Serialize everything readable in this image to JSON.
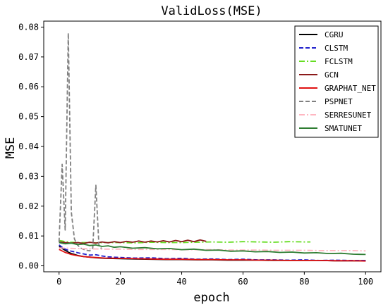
{
  "chart_data": {
    "type": "line",
    "title": "ValidLoss(MSE)",
    "xlabel": "epoch",
    "ylabel": "MSE",
    "xlim": [
      -5,
      105
    ],
    "ylim": [
      -0.002,
      0.082
    ],
    "xticks": [
      "0",
      "20",
      "40",
      "60",
      "80",
      "100"
    ],
    "yticks": [
      "0.00",
      "0.01",
      "0.02",
      "0.03",
      "0.04",
      "0.05",
      "0.06",
      "0.07",
      "0.08"
    ],
    "legend_position": "top-right",
    "grid": false,
    "series": [
      {
        "name": "CGRU",
        "color": "#000000",
        "dash": "solid",
        "points": [
          [
            0,
            0.0065
          ],
          [
            1,
            0.0058
          ],
          [
            2,
            0.0052
          ],
          [
            3,
            0.0046
          ],
          [
            4,
            0.0041
          ],
          [
            5,
            0.0038
          ],
          [
            6,
            0.0035
          ],
          [
            8,
            0.0031
          ],
          [
            10,
            0.0029
          ],
          [
            12,
            0.0027
          ],
          [
            15,
            0.0025
          ],
          [
            20,
            0.0024
          ],
          [
            25,
            0.0023
          ],
          [
            30,
            0.0022
          ],
          [
            35,
            0.0021
          ],
          [
            40,
            0.0021
          ],
          [
            45,
            0.002
          ],
          [
            50,
            0.002
          ],
          [
            55,
            0.0019
          ],
          [
            60,
            0.0019
          ],
          [
            65,
            0.0019
          ],
          [
            70,
            0.0018
          ],
          [
            75,
            0.0018
          ],
          [
            80,
            0.0018
          ],
          [
            85,
            0.0018
          ],
          [
            90,
            0.0017
          ],
          [
            95,
            0.0017
          ],
          [
            100,
            0.0017
          ]
        ]
      },
      {
        "name": "CLSTM",
        "color": "#1f1fcc",
        "dash": "dashed",
        "points": [
          [
            0,
            0.007
          ],
          [
            1,
            0.0062
          ],
          [
            2,
            0.0056
          ],
          [
            3,
            0.0052
          ],
          [
            4,
            0.0049
          ],
          [
            5,
            0.0047
          ],
          [
            6,
            0.0044
          ],
          [
            8,
            0.004
          ],
          [
            10,
            0.0036
          ],
          [
            12,
            0.0037
          ],
          [
            14,
            0.0033
          ],
          [
            16,
            0.003
          ],
          [
            20,
            0.0028
          ],
          [
            25,
            0.0026
          ],
          [
            30,
            0.0027
          ],
          [
            35,
            0.0024
          ],
          [
            40,
            0.0025
          ],
          [
            45,
            0.0022
          ],
          [
            50,
            0.0023
          ],
          [
            55,
            0.0021
          ],
          [
            60,
            0.0022
          ],
          [
            65,
            0.002
          ],
          [
            70,
            0.002
          ],
          [
            75,
            0.0019
          ],
          [
            80,
            0.002
          ],
          [
            85,
            0.0018
          ],
          [
            90,
            0.0019
          ],
          [
            95,
            0.0018
          ],
          [
            100,
            0.0018
          ]
        ]
      },
      {
        "name": "FCLSTM",
        "color": "#66dd22",
        "dash": "dashdot",
        "points": [
          [
            0,
            0.0085
          ],
          [
            1,
            0.0083
          ],
          [
            2,
            0.0081
          ],
          [
            3,
            0.008
          ],
          [
            4,
            0.0079
          ],
          [
            6,
            0.0078
          ],
          [
            8,
            0.0078
          ],
          [
            10,
            0.0078
          ],
          [
            12,
            0.0077
          ],
          [
            15,
            0.0078
          ],
          [
            20,
            0.0078
          ],
          [
            25,
            0.0077
          ],
          [
            30,
            0.0079
          ],
          [
            35,
            0.0078
          ],
          [
            40,
            0.0078
          ],
          [
            45,
            0.0079
          ],
          [
            50,
            0.008
          ],
          [
            55,
            0.0079
          ],
          [
            60,
            0.0081
          ],
          [
            65,
            0.008
          ],
          [
            70,
            0.0079
          ],
          [
            75,
            0.0081
          ],
          [
            80,
            0.008
          ],
          [
            82,
            0.008
          ]
        ]
      },
      {
        "name": "GCN",
        "color": "#8b1a1a",
        "dash": "solid",
        "points": [
          [
            0,
            0.008
          ],
          [
            2,
            0.0078
          ],
          [
            4,
            0.0076
          ],
          [
            6,
            0.0078
          ],
          [
            8,
            0.0075
          ],
          [
            10,
            0.0079
          ],
          [
            12,
            0.0076
          ],
          [
            14,
            0.008
          ],
          [
            16,
            0.0077
          ],
          [
            18,
            0.0081
          ],
          [
            20,
            0.0078
          ],
          [
            22,
            0.0082
          ],
          [
            24,
            0.0079
          ],
          [
            26,
            0.0083
          ],
          [
            28,
            0.0079
          ],
          [
            30,
            0.0083
          ],
          [
            32,
            0.008
          ],
          [
            34,
            0.0084
          ],
          [
            36,
            0.008
          ],
          [
            38,
            0.0085
          ],
          [
            40,
            0.0081
          ],
          [
            42,
            0.0086
          ],
          [
            44,
            0.0081
          ],
          [
            46,
            0.0087
          ],
          [
            48,
            0.0082
          ]
        ]
      },
      {
        "name": "GRAPHAT_NET",
        "color": "#e01010",
        "dash": "solid",
        "points": [
          [
            0,
            0.0055
          ],
          [
            2,
            0.0045
          ],
          [
            4,
            0.0038
          ],
          [
            6,
            0.0034
          ],
          [
            8,
            0.0031
          ],
          [
            10,
            0.0029
          ],
          [
            12,
            0.0028
          ],
          [
            15,
            0.0026
          ],
          [
            20,
            0.0025
          ],
          [
            25,
            0.0024
          ],
          [
            30,
            0.0023
          ],
          [
            35,
            0.0022
          ],
          [
            40,
            0.0022
          ],
          [
            45,
            0.0021
          ],
          [
            50,
            0.0021
          ],
          [
            55,
            0.002
          ],
          [
            60,
            0.002
          ],
          [
            65,
            0.0019
          ],
          [
            70,
            0.0019
          ],
          [
            75,
            0.0018
          ],
          [
            80,
            0.0018
          ],
          [
            85,
            0.0018
          ],
          [
            90,
            0.0017
          ],
          [
            95,
            0.0017
          ],
          [
            100,
            0.0016
          ]
        ]
      },
      {
        "name": "PSPNET",
        "color": "#808080",
        "dash": "dashed",
        "points": [
          [
            0,
            0.008
          ],
          [
            1,
            0.034
          ],
          [
            2,
            0.012
          ],
          [
            3,
            0.078
          ],
          [
            4,
            0.018
          ],
          [
            5,
            0.009
          ],
          [
            6,
            0.007
          ],
          [
            7,
            0.006
          ],
          [
            8,
            0.0055
          ],
          [
            9,
            0.0052
          ],
          [
            10,
            0.005
          ],
          [
            11,
            0.006
          ],
          [
            12,
            0.027
          ],
          [
            13,
            0.007
          ],
          [
            14,
            0.0055
          ]
        ]
      },
      {
        "name": "SERRESUNET",
        "color": "#ffb6c1",
        "dash": "dashdot",
        "points": [
          [
            0,
            0.006
          ],
          [
            5,
            0.0058
          ],
          [
            10,
            0.0057
          ],
          [
            15,
            0.0056
          ],
          [
            20,
            0.0056
          ],
          [
            25,
            0.0055
          ],
          [
            30,
            0.0055
          ],
          [
            35,
            0.0055
          ],
          [
            40,
            0.0054
          ],
          [
            45,
            0.0054
          ],
          [
            50,
            0.0054
          ],
          [
            55,
            0.0053
          ],
          [
            60,
            0.0053
          ],
          [
            65,
            0.0053
          ],
          [
            70,
            0.0052
          ],
          [
            75,
            0.0052
          ],
          [
            80,
            0.0052
          ],
          [
            85,
            0.0051
          ],
          [
            90,
            0.0051
          ],
          [
            95,
            0.0051
          ],
          [
            100,
            0.005
          ]
        ]
      },
      {
        "name": "SMATUNET",
        "color": "#2e7d32",
        "dash": "solid",
        "points": [
          [
            0,
            0.0078
          ],
          [
            2,
            0.0074
          ],
          [
            4,
            0.0076
          ],
          [
            6,
            0.0071
          ],
          [
            8,
            0.0073
          ],
          [
            10,
            0.0068
          ],
          [
            12,
            0.007
          ],
          [
            14,
            0.0065
          ],
          [
            16,
            0.0067
          ],
          [
            18,
            0.0062
          ],
          [
            20,
            0.0064
          ],
          [
            24,
            0.0059
          ],
          [
            28,
            0.0061
          ],
          [
            32,
            0.0057
          ],
          [
            36,
            0.0058
          ],
          [
            40,
            0.0054
          ],
          [
            44,
            0.0056
          ],
          [
            48,
            0.0052
          ],
          [
            52,
            0.0053
          ],
          [
            56,
            0.0049
          ],
          [
            60,
            0.005
          ],
          [
            64,
            0.0047
          ],
          [
            68,
            0.0048
          ],
          [
            72,
            0.0045
          ],
          [
            76,
            0.0046
          ],
          [
            80,
            0.0043
          ],
          [
            84,
            0.0044
          ],
          [
            88,
            0.0041
          ],
          [
            92,
            0.0042
          ],
          [
            96,
            0.0039
          ],
          [
            100,
            0.0038
          ]
        ]
      }
    ]
  }
}
